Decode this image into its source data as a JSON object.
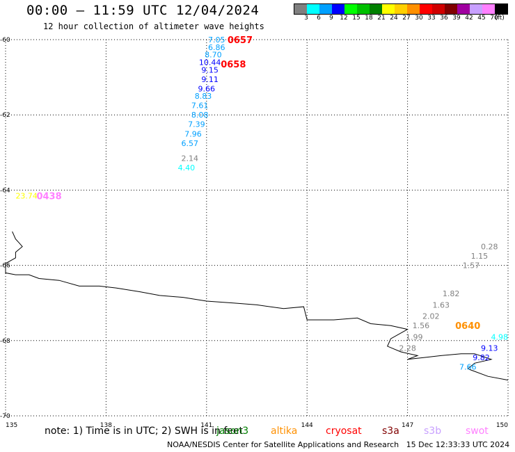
{
  "header": {
    "title": "00:00 – 11:59 UTC 12/04/2024",
    "subtitle": "12 hour collection of altimeter wave heights"
  },
  "legend": {
    "unit": "(ft)",
    "bins": [
      {
        "label": "3",
        "color": "#808080"
      },
      {
        "label": "6",
        "color": "#00ffff"
      },
      {
        "label": "9",
        "color": "#00a0ff"
      },
      {
        "label": "12",
        "color": "#0000ff"
      },
      {
        "label": "15",
        "color": "#00ff00"
      },
      {
        "label": "18",
        "color": "#00c000"
      },
      {
        "label": "21",
        "color": "#008000"
      },
      {
        "label": "24",
        "color": "#ffff00"
      },
      {
        "label": "27",
        "color": "#ffd000"
      },
      {
        "label": "30",
        "color": "#ff9000"
      },
      {
        "label": "33",
        "color": "#ff0000"
      },
      {
        "label": "36",
        "color": "#d00000"
      },
      {
        "label": "39",
        "color": "#800000"
      },
      {
        "label": "42",
        "color": "#a000a0"
      },
      {
        "label": "45",
        "color": "#c8a0ff"
      },
      {
        "label": "70",
        "color": "#ff80ff"
      },
      {
        "label": "",
        "color": "#000000"
      }
    ]
  },
  "axes": {
    "lat_labels": [
      "-60",
      "-62",
      "-64",
      "-66",
      "-68",
      "-70"
    ],
    "lon_labels": [
      "135",
      "138",
      "141",
      "144",
      "147",
      "150"
    ]
  },
  "map_data": {
    "lon_range": [
      135,
      150
    ],
    "lat_range": [
      -70,
      -60
    ],
    "grid": "dotted",
    "track_points": [
      {
        "text": "7.05",
        "lon": 141.3,
        "lat": -60.0,
        "color": "#00a0ff"
      },
      {
        "text": "6.86",
        "lon": 141.3,
        "lat": -60.2,
        "color": "#00a0ff"
      },
      {
        "text": "8.70",
        "lon": 141.2,
        "lat": -60.4,
        "color": "#00a0ff"
      },
      {
        "text": "10.44",
        "lon": 141.1,
        "lat": -60.6,
        "color": "#0000ff"
      },
      {
        "text": "9.15",
        "lon": 141.1,
        "lat": -60.8,
        "color": "#0000ff"
      },
      {
        "text": "9.11",
        "lon": 141.1,
        "lat": -61.05,
        "color": "#0000ff"
      },
      {
        "text": "9.66",
        "lon": 141.0,
        "lat": -61.3,
        "color": "#0000ff"
      },
      {
        "text": "8.83",
        "lon": 140.9,
        "lat": -61.5,
        "color": "#00a0ff"
      },
      {
        "text": "7.61",
        "lon": 140.8,
        "lat": -61.75,
        "color": "#00a0ff"
      },
      {
        "text": "8.08",
        "lon": 140.8,
        "lat": -62.0,
        "color": "#00a0ff"
      },
      {
        "text": "7.39",
        "lon": 140.7,
        "lat": -62.25,
        "color": "#00a0ff"
      },
      {
        "text": "7.96",
        "lon": 140.6,
        "lat": -62.5,
        "color": "#00a0ff"
      },
      {
        "text": "6.57",
        "lon": 140.5,
        "lat": -62.75,
        "color": "#00a0ff"
      },
      {
        "text": "2.14",
        "lon": 140.5,
        "lat": -63.15,
        "color": "#808080"
      },
      {
        "text": "4.40",
        "lon": 140.4,
        "lat": -63.4,
        "color": "#00ffff"
      },
      {
        "text": "23.74",
        "lon": 135.3,
        "lat": -64.15,
        "color": "#ffff00"
      },
      {
        "text": "0.28",
        "lon": 149.7,
        "lat": -65.5,
        "color": "#808080"
      },
      {
        "text": "1.15",
        "lon": 149.4,
        "lat": -65.75,
        "color": "#808080"
      },
      {
        "text": "1.57",
        "lon": 148.9,
        "lat": -66.0,
        "color": "#808080"
      },
      {
        "text": "1.82",
        "lon": 148.3,
        "lat": -66.75,
        "color": "#808080"
      },
      {
        "text": "1.63",
        "lon": 148.0,
        "lat": -67.05,
        "color": "#808080"
      },
      {
        "text": "2.02",
        "lon": 147.7,
        "lat": -67.35,
        "color": "#808080"
      },
      {
        "text": "1.56",
        "lon": 147.4,
        "lat": -67.6,
        "color": "#808080"
      },
      {
        "text": "1.99",
        "lon": 147.2,
        "lat": -67.9,
        "color": "#808080"
      },
      {
        "text": "2.28",
        "lon": 147.0,
        "lat": -68.2,
        "color": "#808080"
      },
      {
        "text": "4.98",
        "lon": 150.0,
        "lat": -67.9,
        "color": "#00ffff"
      },
      {
        "text": "9.13",
        "lon": 149.7,
        "lat": -68.2,
        "color": "#0000ff"
      },
      {
        "text": "9.82",
        "lon": 149.2,
        "lat": -68.45,
        "color": "#0000ff"
      },
      {
        "text": "7.66",
        "lon": 148.8,
        "lat": -68.7,
        "color": "#00a0ff"
      }
    ],
    "pass_times": [
      {
        "text": "0657",
        "lon": 142.0,
        "lat": -60.0,
        "color": "#ff0000"
      },
      {
        "text": "0658",
        "lon": 141.8,
        "lat": -60.65,
        "color": "#ff0000"
      },
      {
        "text": "0438",
        "lon": 136.3,
        "lat": -64.15,
        "color": "#ff80ff"
      },
      {
        "text": "0640",
        "lon": 148.8,
        "lat": -67.6,
        "color": "#ff9000"
      }
    ],
    "coastline": [
      [
        135.2,
        -65.1
      ],
      [
        135.3,
        -65.3
      ],
      [
        135.4,
        -65.4
      ],
      [
        135.5,
        -65.5
      ],
      [
        135.3,
        -65.65
      ],
      [
        135.3,
        -65.8
      ],
      [
        135.0,
        -65.95
      ],
      [
        135.0,
        -66.2
      ],
      [
        135.3,
        -66.25
      ],
      [
        135.7,
        -66.25
      ],
      [
        136.0,
        -66.35
      ],
      [
        136.6,
        -66.4
      ],
      [
        137.2,
        -66.55
      ],
      [
        137.8,
        -66.55
      ],
      [
        138.3,
        -66.6
      ],
      [
        139.0,
        -66.7
      ],
      [
        139.6,
        -66.8
      ],
      [
        140.3,
        -66.85
      ],
      [
        141.0,
        -66.95
      ],
      [
        141.8,
        -67.0
      ],
      [
        142.5,
        -67.05
      ],
      [
        143.3,
        -67.15
      ],
      [
        143.9,
        -67.1
      ],
      [
        144.0,
        -67.45
      ],
      [
        144.8,
        -67.45
      ],
      [
        145.5,
        -67.4
      ],
      [
        145.9,
        -67.55
      ],
      [
        146.5,
        -67.6
      ],
      [
        147.0,
        -67.7
      ],
      [
        146.5,
        -67.95
      ],
      [
        146.4,
        -68.15
      ],
      [
        146.8,
        -68.3
      ],
      [
        147.3,
        -68.4
      ],
      [
        147.0,
        -68.5
      ],
      [
        147.5,
        -68.45
      ],
      [
        148.0,
        -68.4
      ],
      [
        148.6,
        -68.35
      ],
      [
        149.0,
        -68.35
      ],
      [
        149.5,
        -68.5
      ],
      [
        149.0,
        -68.6
      ],
      [
        148.8,
        -68.75
      ],
      [
        149.4,
        -68.95
      ],
      [
        150.0,
        -69.05
      ]
    ]
  },
  "footer_note": {
    "text": "note: 1) Time is in UTC; 2) SWH is in feet",
    "satellites": [
      {
        "name": "jason3",
        "color": "#008000"
      },
      {
        "name": "altika",
        "color": "#ff9000"
      },
      {
        "name": "cryosat",
        "color": "#ff0000"
      },
      {
        "name": "s3a",
        "color": "#800000"
      },
      {
        "name": "s3b",
        "color": "#c8a0ff"
      },
      {
        "name": "swot",
        "color": "#ff80ff"
      }
    ]
  },
  "credit": {
    "org": "NOAA/NESDIS Center for Satellite Applications and Research",
    "timestamp": "15 Dec 12:33:33 UTC 2024"
  }
}
